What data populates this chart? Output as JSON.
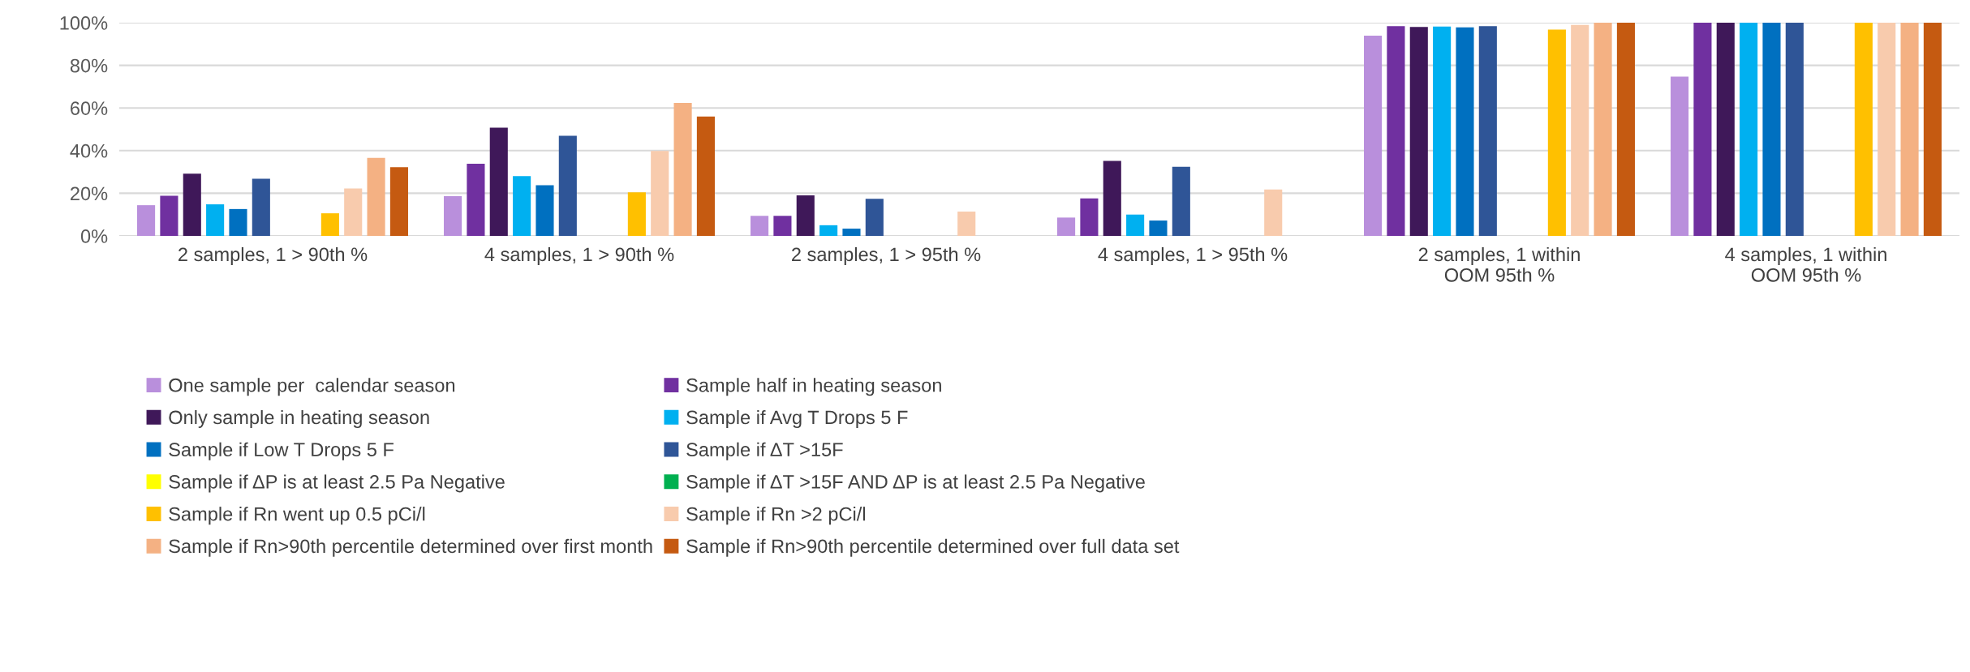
{
  "chart_data": {
    "type": "bar",
    "categories": [
      "2 samples, 1 > 90th %",
      "4 samples, 1 > 90th %",
      "2 samples, 1 > 95th %",
      "4 samples, 1 > 95th %",
      "2 samples, 1 within\nOOM 95th %",
      "4 samples, 1 within\nOOM 95th %"
    ],
    "series": [
      {
        "name": "One sample per  calendar season",
        "color": "#b98fdc",
        "values": [
          14.4,
          18.6,
          9.4,
          8.6,
          93.9,
          74.7
        ]
      },
      {
        "name": "Sample half in heating season",
        "color": "#7030a0",
        "values": [
          18.8,
          33.8,
          9.4,
          17.6,
          98.4,
          100
        ]
      },
      {
        "name": "Only sample in heating season",
        "color": "#3f1859",
        "values": [
          29.2,
          50.8,
          19,
          35.2,
          98,
          100
        ]
      },
      {
        "name": "Sample if Avg T Drops 5 F",
        "color": "#00b0f0",
        "values": [
          14.8,
          28,
          5,
          10,
          98.2,
          100
        ]
      },
      {
        "name": "Sample if Low T Drops 5 F",
        "color": "#0070c0",
        "values": [
          12.6,
          23.8,
          3.4,
          7.2,
          97.8,
          100
        ]
      },
      {
        "name": "Sample if ΔT >15F",
        "color": "#2f5597",
        "values": [
          26.8,
          47,
          17.4,
          32.4,
          98.4,
          100
        ]
      },
      {
        "name": "Sample if ΔP is at least 2.5 Pa Negative",
        "color": "#ffff00",
        "values": [
          null,
          null,
          null,
          null,
          null,
          null
        ]
      },
      {
        "name": "Sample if ΔT >15F AND ΔP is at least 2.5 Pa Negative",
        "color": "#00b050",
        "values": [
          null,
          null,
          null,
          null,
          null,
          null
        ]
      },
      {
        "name": "Sample if Rn went up 0.5 pCi/l",
        "color": "#ffc000",
        "values": [
          10.6,
          20.4,
          null,
          null,
          96.8,
          100
        ]
      },
      {
        "name": "Sample if Rn >2 pCi/l",
        "color": "#f8cbad",
        "values": [
          22.2,
          39.8,
          11.4,
          21.8,
          99,
          100
        ]
      },
      {
        "name": "Sample if Rn>90th percentile determined over first month",
        "color": "#f4b183",
        "values": [
          36.6,
          62.4,
          null,
          null,
          100,
          100
        ]
      },
      {
        "name": "Sample if Rn>90th percentile determined over full data set",
        "color": "#c55a11",
        "values": [
          32.2,
          56,
          null,
          null,
          100,
          100
        ]
      }
    ],
    "ylim": [
      0,
      100
    ],
    "yticks": [
      {
        "value": 0,
        "label": "0%"
      },
      {
        "value": 20,
        "label": "20%"
      },
      {
        "value": 40,
        "label": "40%"
      },
      {
        "value": 60,
        "label": "60%"
      },
      {
        "value": 80,
        "label": "80%"
      },
      {
        "value": 100,
        "label": "100%"
      }
    ],
    "grid": "y",
    "legend": "bottom"
  }
}
